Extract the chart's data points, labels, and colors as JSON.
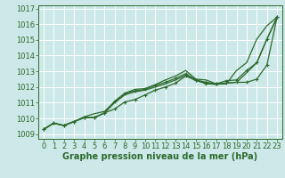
{
  "bg_color": "#cce8e8",
  "grid_color": "#aadddd",
  "line_color": "#2d6a2d",
  "xlabel": "Graphe pression niveau de la mer (hPa)",
  "xlim": [
    -0.5,
    23.5
  ],
  "ylim": [
    1008.7,
    1017.2
  ],
  "yticks": [
    1009,
    1010,
    1011,
    1012,
    1013,
    1014,
    1015,
    1016,
    1017
  ],
  "xticks": [
    0,
    1,
    2,
    3,
    4,
    5,
    6,
    7,
    8,
    9,
    10,
    11,
    12,
    13,
    14,
    15,
    16,
    17,
    18,
    19,
    20,
    21,
    22,
    23
  ],
  "series": [
    [
      1009.3,
      1009.7,
      1009.55,
      1009.8,
      1010.1,
      1010.3,
      1010.45,
      1011.05,
      1011.6,
      1011.85,
      1011.9,
      1012.15,
      1012.45,
      1012.7,
      1013.05,
      1012.5,
      1012.45,
      1012.2,
      1012.2,
      1013.05,
      1013.55,
      1015.05,
      1015.9,
      1016.45
    ],
    [
      1009.3,
      1009.7,
      1009.55,
      1009.8,
      1010.05,
      1010.05,
      1010.35,
      1010.6,
      1011.05,
      1011.2,
      1011.5,
      1011.8,
      1012.0,
      1012.25,
      1012.7,
      1012.45,
      1012.2,
      1012.2,
      1012.25,
      1012.3,
      1012.3,
      1012.5,
      1013.4,
      1016.45
    ],
    [
      1009.3,
      1009.7,
      1009.55,
      1009.8,
      1010.05,
      1010.05,
      1010.35,
      1011.1,
      1011.6,
      1011.75,
      1011.85,
      1012.1,
      1012.3,
      1012.55,
      1012.85,
      1012.45,
      1012.3,
      1012.2,
      1012.4,
      1012.45,
      1013.05,
      1013.55,
      1015.05,
      1016.45
    ],
    [
      1009.3,
      1009.7,
      1009.55,
      1009.8,
      1010.05,
      1010.05,
      1010.35,
      1011.0,
      1011.5,
      1011.7,
      1011.8,
      1012.0,
      1012.2,
      1012.45,
      1012.75,
      1012.4,
      1012.25,
      1012.15,
      1012.25,
      1012.3,
      1012.9,
      1013.55,
      1015.05,
      1016.45
    ]
  ],
  "font_color": "#2d6a2d",
  "tick_fontsize": 6.0,
  "label_fontsize": 7.0
}
